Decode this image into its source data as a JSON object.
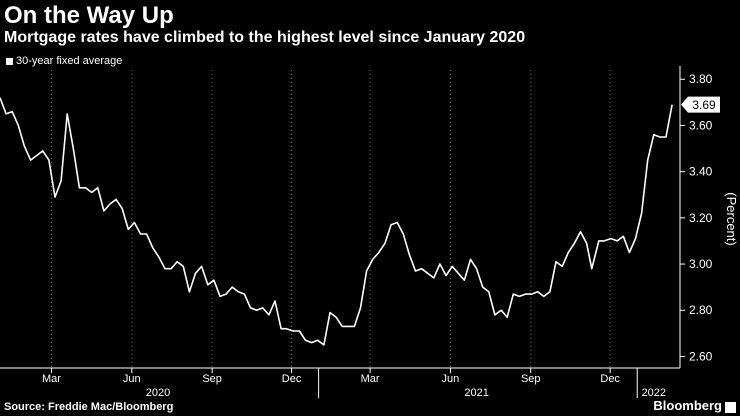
{
  "header": {
    "title": "On the Way Up",
    "subtitle": "Mortgage rates have climbed to the highest level since January 2020",
    "legend_label": "30-year fixed average"
  },
  "footer": {
    "source": "Source: Freddie Mac/Bloomberg",
    "brand": "Bloomberg"
  },
  "colors": {
    "background": "#000000",
    "line": "#ffffff",
    "text": "#ffffff",
    "grid": "#666666"
  },
  "chart_data": {
    "type": "line",
    "title": "On the Way Up",
    "subtitle": "Mortgage rates have climbed to the highest level since January 2020",
    "ylabel": "(Percent)",
    "ylim": [
      2.55,
      3.84
    ],
    "yticks": [
      2.6,
      2.8,
      3.0,
      3.2,
      3.4,
      3.6,
      3.8
    ],
    "ytick_labels": [
      "2.60",
      "2.80",
      "3.00",
      "3.20",
      "3.40",
      "3.60",
      "3.80"
    ],
    "xlim": [
      "2020-01-02",
      "2022-02-19"
    ],
    "xticks": [
      {
        "date": "2020-03-01",
        "label": "Mar"
      },
      {
        "date": "2020-06-01",
        "label": "Jun"
      },
      {
        "date": "2020-09-01",
        "label": "Sep"
      },
      {
        "date": "2020-12-01",
        "label": "Dec"
      },
      {
        "date": "2021-03-01",
        "label": "Mar"
      },
      {
        "date": "2021-06-01",
        "label": "Jun"
      },
      {
        "date": "2021-09-01",
        "label": "Sep"
      },
      {
        "date": "2021-12-01",
        "label": "Dec"
      }
    ],
    "year_labels": [
      {
        "date": "2020-07-01",
        "label": "2020"
      },
      {
        "date": "2021-07-01",
        "label": "2021"
      },
      {
        "date": "2022-01-20",
        "label": "2022"
      }
    ],
    "year_separators": [
      "2021-01-01",
      "2022-01-01"
    ],
    "grid": "vertical dotted at tick marks",
    "last_value_label": "3.69",
    "series": [
      {
        "name": "30-year fixed average",
        "color": "#ffffff",
        "x": [
          "2020-01-02",
          "2020-01-09",
          "2020-01-16",
          "2020-01-23",
          "2020-01-30",
          "2020-02-06",
          "2020-02-13",
          "2020-02-20",
          "2020-02-27",
          "2020-03-05",
          "2020-03-12",
          "2020-03-19",
          "2020-03-26",
          "2020-04-02",
          "2020-04-09",
          "2020-04-16",
          "2020-04-23",
          "2020-04-30",
          "2020-05-07",
          "2020-05-14",
          "2020-05-21",
          "2020-05-28",
          "2020-06-04",
          "2020-06-11",
          "2020-06-18",
          "2020-06-25",
          "2020-07-02",
          "2020-07-09",
          "2020-07-16",
          "2020-07-23",
          "2020-07-30",
          "2020-08-06",
          "2020-08-13",
          "2020-08-20",
          "2020-08-27",
          "2020-09-03",
          "2020-09-10",
          "2020-09-17",
          "2020-09-24",
          "2020-10-01",
          "2020-10-08",
          "2020-10-15",
          "2020-10-22",
          "2020-10-29",
          "2020-11-05",
          "2020-11-12",
          "2020-11-19",
          "2020-11-25",
          "2020-12-03",
          "2020-12-10",
          "2020-12-17",
          "2020-12-24",
          "2020-12-31",
          "2021-01-07",
          "2021-01-14",
          "2021-01-21",
          "2021-01-28",
          "2021-02-04",
          "2021-02-11",
          "2021-02-18",
          "2021-02-25",
          "2021-03-04",
          "2021-03-11",
          "2021-03-18",
          "2021-03-25",
          "2021-04-01",
          "2021-04-08",
          "2021-04-15",
          "2021-04-22",
          "2021-04-29",
          "2021-05-06",
          "2021-05-13",
          "2021-05-20",
          "2021-05-27",
          "2021-06-03",
          "2021-06-10",
          "2021-06-17",
          "2021-06-24",
          "2021-07-01",
          "2021-07-08",
          "2021-07-15",
          "2021-07-22",
          "2021-07-29",
          "2021-08-05",
          "2021-08-12",
          "2021-08-19",
          "2021-08-26",
          "2021-09-02",
          "2021-09-09",
          "2021-09-16",
          "2021-09-23",
          "2021-09-30",
          "2021-10-07",
          "2021-10-14",
          "2021-10-21",
          "2021-10-28",
          "2021-11-04",
          "2021-11-10",
          "2021-11-18",
          "2021-11-24",
          "2021-12-02",
          "2021-12-09",
          "2021-12-16",
          "2021-12-23",
          "2021-12-30",
          "2022-01-06",
          "2022-01-13",
          "2022-01-20",
          "2022-01-27",
          "2022-02-03",
          "2022-02-10"
        ],
        "y": [
          3.72,
          3.65,
          3.66,
          3.6,
          3.51,
          3.45,
          3.47,
          3.49,
          3.45,
          3.29,
          3.36,
          3.65,
          3.5,
          3.33,
          3.33,
          3.31,
          3.33,
          3.23,
          3.26,
          3.28,
          3.24,
          3.15,
          3.18,
          3.13,
          3.13,
          3.07,
          3.03,
          2.98,
          2.98,
          3.01,
          2.99,
          2.88,
          2.96,
          2.99,
          2.91,
          2.93,
          2.86,
          2.87,
          2.9,
          2.88,
          2.87,
          2.81,
          2.8,
          2.81,
          2.78,
          2.84,
          2.72,
          2.72,
          2.71,
          2.71,
          2.67,
          2.66,
          2.67,
          2.65,
          2.79,
          2.77,
          2.73,
          2.73,
          2.73,
          2.81,
          2.97,
          3.02,
          3.05,
          3.09,
          3.17,
          3.18,
          3.13,
          3.04,
          2.97,
          2.98,
          2.96,
          2.94,
          3.0,
          2.95,
          2.99,
          2.96,
          2.93,
          3.02,
          2.98,
          2.9,
          2.88,
          2.78,
          2.8,
          2.77,
          2.87,
          2.86,
          2.87,
          2.87,
          2.88,
          2.86,
          2.88,
          3.01,
          2.99,
          3.05,
          3.09,
          3.14,
          3.09,
          2.98,
          3.1,
          3.1,
          3.11,
          3.1,
          3.12,
          3.05,
          3.11,
          3.22,
          3.45,
          3.56,
          3.55,
          3.55,
          3.69
        ]
      }
    ]
  }
}
